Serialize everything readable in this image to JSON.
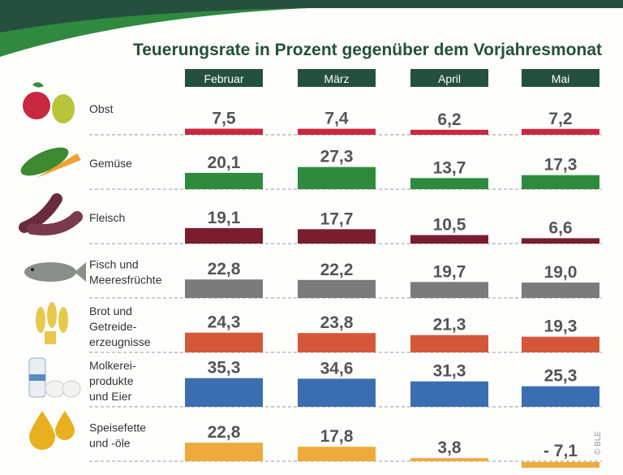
{
  "chart_data": {
    "type": "bar",
    "title": "Teuerungsrate in Prozent gegenüber dem Vorjahresmonat",
    "months": [
      "Februar",
      "März",
      "April",
      "Mai"
    ],
    "categories": [
      {
        "label": [
          "Obst"
        ],
        "icon": "fruit-icon",
        "color": "#c8283f",
        "values": [
          7.5,
          7.4,
          6.2,
          7.2
        ],
        "labels": [
          "7,5",
          "7,4",
          "6,2",
          "7,2"
        ]
      },
      {
        "label": [
          "Gemüse"
        ],
        "icon": "vegetable-icon",
        "color": "#2e8b3e",
        "values": [
          20.1,
          27.3,
          13.7,
          17.3
        ],
        "labels": [
          "20,1",
          "27,3",
          "13,7",
          "17,3"
        ]
      },
      {
        "label": [
          "Fleisch"
        ],
        "icon": "sausage-icon",
        "color": "#7a1d2e",
        "values": [
          19.1,
          17.7,
          10.5,
          6.6
        ],
        "labels": [
          "19,1",
          "17,7",
          "10,5",
          "6,6"
        ]
      },
      {
        "label": [
          "Fisch und",
          "Meeresfrüchte"
        ],
        "icon": "fish-icon",
        "color": "#7b7b7b",
        "values": [
          22.8,
          22.2,
          19.7,
          19.0
        ],
        "labels": [
          "22,8",
          "22,2",
          "19,7",
          "19,0"
        ]
      },
      {
        "label": [
          "Brot und",
          "Getreide-",
          "erzeugnisse"
        ],
        "icon": "wheat-icon",
        "color": "#d4573a",
        "values": [
          24.3,
          23.8,
          21.3,
          19.3
        ],
        "labels": [
          "24,3",
          "23,8",
          "21,3",
          "19,3"
        ]
      },
      {
        "label": [
          "Molkerei-",
          "produkte",
          "und Eier"
        ],
        "icon": "milk-eggs-icon",
        "color": "#3a6eb0",
        "values": [
          35.3,
          34.6,
          31.3,
          25.3
        ],
        "labels": [
          "35,3",
          "34,6",
          "31,3",
          "25,3"
        ]
      },
      {
        "label": [
          "Speisefette",
          "und -öle"
        ],
        "icon": "oil-drops-icon",
        "color": "#efaa3d",
        "values": [
          22.8,
          17.8,
          3.8,
          -7.1
        ],
        "labels": [
          "22,8",
          "17,8",
          "3,8",
          "- 7,1"
        ]
      }
    ],
    "header_color": "#24503d",
    "credit": "© BLE"
  }
}
